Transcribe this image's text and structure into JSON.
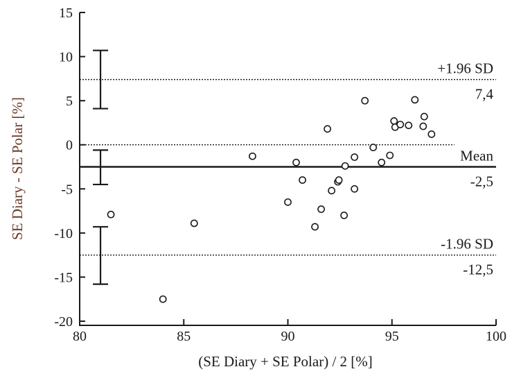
{
  "chart_data": {
    "type": "scatter",
    "xlabel": "(SE Diary + SE Polar) / 2 [%]",
    "ylabel": "SE Diary - SE Polar [%]",
    "xlim": [
      80,
      100
    ],
    "ylim": [
      -20,
      15
    ],
    "x_ticks": [
      80,
      85,
      90,
      95,
      100
    ],
    "y_ticks": [
      15,
      10,
      5,
      0,
      -5,
      -10,
      -15,
      -20
    ],
    "grid": false,
    "points": [
      {
        "x": 81.5,
        "y": -7.9
      },
      {
        "x": 84.0,
        "y": -17.5
      },
      {
        "x": 85.5,
        "y": -8.9
      },
      {
        "x": 88.3,
        "y": -1.3
      },
      {
        "x": 90.0,
        "y": -6.5
      },
      {
        "x": 90.4,
        "y": -2.0
      },
      {
        "x": 90.7,
        "y": -4.0
      },
      {
        "x": 91.3,
        "y": -9.3
      },
      {
        "x": 91.6,
        "y": -7.3
      },
      {
        "x": 91.9,
        "y": 1.8
      },
      {
        "x": 92.1,
        "y": -5.2
      },
      {
        "x": 92.4,
        "y": -4.2
      },
      {
        "x": 92.45,
        "y": -4.0
      },
      {
        "x": 92.7,
        "y": -8.0
      },
      {
        "x": 92.75,
        "y": -2.4
      },
      {
        "x": 93.2,
        "y": -1.4
      },
      {
        "x": 93.2,
        "y": -5.0
      },
      {
        "x": 93.7,
        "y": 5.0
      },
      {
        "x": 94.1,
        "y": -0.3
      },
      {
        "x": 94.5,
        "y": -2.0
      },
      {
        "x": 94.9,
        "y": -1.2
      },
      {
        "x": 95.1,
        "y": 2.7
      },
      {
        "x": 95.15,
        "y": 2.0
      },
      {
        "x": 95.4,
        "y": 2.3
      },
      {
        "x": 95.8,
        "y": 2.2
      },
      {
        "x": 96.1,
        "y": 5.1
      },
      {
        "x": 96.5,
        "y": 2.1
      },
      {
        "x": 96.55,
        "y": 3.2
      },
      {
        "x": 96.9,
        "y": 1.2
      }
    ],
    "reference_lines": [
      {
        "name": "upper_loa",
        "y": 7.4,
        "style": "dotted",
        "label_top": "+1.96 SD",
        "label_bottom": "7,4",
        "x_end": 100
      },
      {
        "name": "zero",
        "y": 0,
        "style": "dotted",
        "label_top": "",
        "label_bottom": "",
        "x_end": 98
      },
      {
        "name": "mean",
        "y": -2.5,
        "style": "solid",
        "label_top": "Mean",
        "label_bottom": "-2,5",
        "x_end": 100
      },
      {
        "name": "lower_loa",
        "y": -12.5,
        "style": "dotted",
        "label_top": "-1.96 SD",
        "label_bottom": "-12,5",
        "x_end": 100
      }
    ],
    "confidence_intervals": [
      {
        "name": "upper_loa_ci",
        "x": 81,
        "low": 4.1,
        "high": 10.7
      },
      {
        "name": "mean_ci",
        "x": 81,
        "low": -4.5,
        "high": -0.6
      },
      {
        "name": "lower_loa_ci",
        "x": 81,
        "low": -15.8,
        "high": -9.3
      }
    ]
  }
}
